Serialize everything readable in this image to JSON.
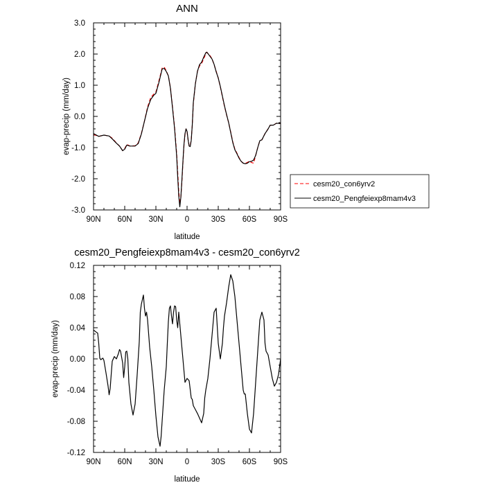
{
  "chart_data": [
    {
      "type": "line",
      "title": "ANN",
      "xlabel": "latitude",
      "ylabel": "evap-precip (mm/day)",
      "x_ticks": [
        "90N",
        "60N",
        "30N",
        "0",
        "30S",
        "60S",
        "90S"
      ],
      "x_tick_values": [
        90,
        60,
        30,
        0,
        -30,
        -60,
        -90
      ],
      "y_ticks": [
        "3.0",
        "2.0",
        "1.0",
        "0.0",
        "-1.0",
        "-2.0",
        "-3.0"
      ],
      "xlim": [
        90,
        -90
      ],
      "ylim": [
        -3,
        3
      ],
      "legend_position": "right",
      "series": [
        {
          "name": "cesm20_con6yrv2",
          "color": "#ff0000",
          "dash": "dashed",
          "x": [
            90,
            85,
            80,
            75,
            72,
            68,
            65,
            62,
            60,
            58,
            55,
            50,
            47,
            44,
            41,
            38,
            35,
            32,
            30,
            27,
            24,
            22,
            20,
            18,
            16,
            14,
            12,
            10,
            9,
            8,
            7,
            6,
            5,
            4,
            3,
            2,
            1,
            0,
            -1,
            -2,
            -3,
            -4,
            -5,
            -6,
            -8,
            -10,
            -12,
            -14,
            -16,
            -18,
            -19,
            -20,
            -22,
            -24,
            -26,
            -28,
            -30,
            -32,
            -34,
            -36,
            -38,
            -40,
            -42,
            -44,
            -46,
            -48,
            -50,
            -52,
            -54,
            -56,
            -58,
            -60,
            -62,
            -64,
            -66,
            -68,
            -70,
            -72,
            -75,
            -78,
            -80,
            -83,
            -86,
            -90
          ],
          "y": [
            -0.58,
            -0.64,
            -0.6,
            -0.63,
            -0.7,
            -0.85,
            -0.95,
            -1.1,
            -1.03,
            -0.9,
            -0.95,
            -0.94,
            -0.85,
            -0.55,
            -0.15,
            0.3,
            0.6,
            0.72,
            0.78,
            1.15,
            1.55,
            1.58,
            1.46,
            1.3,
            0.92,
            0.3,
            -0.35,
            -1.2,
            -1.8,
            -2.4,
            -2.8,
            -2.6,
            -2.1,
            -1.5,
            -0.95,
            -0.58,
            -0.4,
            -0.5,
            -0.75,
            -0.95,
            -0.95,
            -0.75,
            -0.3,
            0.4,
            1.05,
            1.45,
            1.62,
            1.7,
            1.85,
            2.01,
            2.06,
            2.02,
            1.95,
            1.85,
            1.66,
            1.45,
            1.23,
            0.95,
            0.63,
            0.32,
            0.05,
            -0.2,
            -0.5,
            -0.82,
            -1.05,
            -1.18,
            -1.32,
            -1.44,
            -1.5,
            -1.5,
            -1.48,
            -1.43,
            -1.48,
            -1.5,
            -1.25,
            -1.0,
            -0.78,
            -0.75,
            -0.55,
            -0.4,
            -0.28,
            -0.28,
            -0.22,
            -0.23
          ]
        },
        {
          "name": "cesm20_Pengfeiexp8mam4v3",
          "color": "#000000",
          "dash": "solid",
          "x": [
            90,
            85,
            80,
            75,
            72,
            68,
            65,
            62,
            60,
            58,
            55,
            50,
            47,
            44,
            41,
            38,
            35,
            32,
            30,
            27,
            24,
            22,
            20,
            18,
            16,
            14,
            12,
            10,
            9,
            8,
            7,
            6,
            5,
            4,
            3,
            2,
            1,
            0,
            -1,
            -2,
            -3,
            -4,
            -5,
            -6,
            -8,
            -10,
            -12,
            -14,
            -16,
            -18,
            -19,
            -20,
            -22,
            -24,
            -26,
            -28,
            -30,
            -32,
            -34,
            -36,
            -38,
            -40,
            -42,
            -44,
            -46,
            -48,
            -50,
            -52,
            -54,
            -56,
            -58,
            -60,
            -62,
            -64,
            -66,
            -68,
            -70,
            -72,
            -75,
            -78,
            -80,
            -83,
            -86,
            -90
          ],
          "y": [
            -0.55,
            -0.64,
            -0.6,
            -0.63,
            -0.72,
            -0.86,
            -0.95,
            -1.1,
            -1.05,
            -0.92,
            -0.95,
            -0.95,
            -0.87,
            -0.57,
            -0.15,
            0.26,
            0.54,
            0.68,
            0.74,
            1.1,
            1.52,
            1.54,
            1.44,
            1.3,
            0.9,
            0.27,
            -0.4,
            -1.28,
            -1.95,
            -2.55,
            -2.9,
            -2.6,
            -2.05,
            -1.45,
            -0.9,
            -0.55,
            -0.4,
            -0.48,
            -0.75,
            -0.95,
            -0.97,
            -0.77,
            -0.28,
            0.44,
            1.05,
            1.45,
            1.66,
            1.74,
            1.9,
            2.04,
            2.06,
            2.02,
            1.93,
            1.84,
            1.67,
            1.43,
            1.23,
            0.96,
            0.65,
            0.34,
            0.06,
            -0.2,
            -0.52,
            -0.84,
            -1.07,
            -1.2,
            -1.34,
            -1.44,
            -1.5,
            -1.52,
            -1.5,
            -1.45,
            -1.44,
            -1.4,
            -1.25,
            -1.0,
            -0.78,
            -0.75,
            -0.55,
            -0.4,
            -0.28,
            -0.28,
            -0.22,
            -0.23
          ]
        }
      ]
    },
    {
      "type": "line",
      "title": "cesm20_Pengfeiexp8mam4v3 - cesm20_con6yrv2",
      "xlabel": "latitude",
      "ylabel": "evap-precip (mm/day)",
      "x_ticks": [
        "90N",
        "60N",
        "30N",
        "0",
        "30S",
        "60S",
        "90S"
      ],
      "x_tick_values": [
        90,
        60,
        30,
        0,
        -30,
        -60,
        -90
      ],
      "y_ticks": [
        "0.12",
        "0.08",
        "0.04",
        "0.00",
        "-0.04",
        "-0.08",
        "-0.12"
      ],
      "xlim": [
        90,
        -90
      ],
      "ylim": [
        -0.12,
        0.12
      ],
      "series": [
        {
          "name": "",
          "color": "#000000",
          "dash": "solid",
          "x": [
            90,
            87,
            86,
            85,
            84,
            83,
            82,
            81,
            80,
            78,
            76,
            75,
            74,
            73,
            72,
            70,
            68,
            66,
            65,
            64,
            62,
            61,
            60,
            59,
            58,
            57,
            56,
            54,
            52,
            50,
            48,
            46,
            45,
            44,
            42,
            41,
            40,
            39,
            38,
            36,
            34,
            32,
            30,
            28,
            26,
            25,
            24,
            23,
            22,
            20,
            19,
            18,
            17,
            16,
            15,
            14,
            13,
            12,
            11,
            10,
            9,
            8,
            6,
            4,
            2,
            0,
            -2,
            -4,
            -5,
            -6,
            -8,
            -10,
            -12,
            -14,
            -16,
            -17,
            -18,
            -20,
            -22,
            -24,
            -26,
            -28,
            -30,
            -32,
            -34,
            -35,
            -36,
            -38,
            -40,
            -42,
            -44,
            -46,
            -48,
            -50,
            -52,
            -54,
            -55,
            -56,
            -58,
            -60,
            -62,
            -64,
            -66,
            -68,
            -70,
            -72,
            -74,
            -75,
            -76,
            -78,
            -80,
            -82,
            -84,
            -86,
            -88,
            -90
          ],
          "y": [
            0.037,
            0.034,
            0.033,
            0.02,
            0.001,
            -0.001,
            0.0,
            0.001,
            -0.002,
            -0.018,
            -0.035,
            -0.046,
            -0.038,
            -0.02,
            -0.003,
            0.003,
            0.0,
            0.007,
            0.012,
            0.01,
            -0.005,
            -0.024,
            -0.01,
            0.009,
            0.01,
            0.0,
            -0.03,
            -0.058,
            -0.072,
            -0.058,
            -0.02,
            0.022,
            0.06,
            0.07,
            0.082,
            0.065,
            0.055,
            0.06,
            0.05,
            0.015,
            -0.01,
            -0.04,
            -0.073,
            -0.1,
            -0.112,
            -0.1,
            -0.08,
            -0.06,
            -0.04,
            -0.01,
            0.02,
            0.048,
            0.065,
            0.068,
            0.055,
            0.045,
            0.06,
            0.068,
            0.067,
            0.05,
            0.04,
            0.06,
            0.03,
            0.0,
            -0.03,
            -0.025,
            -0.028,
            -0.05,
            -0.052,
            -0.06,
            -0.065,
            -0.07,
            -0.076,
            -0.082,
            -0.07,
            -0.05,
            -0.04,
            -0.025,
            0.0,
            0.03,
            0.06,
            0.065,
            0.02,
            0.0,
            0.02,
            0.04,
            0.055,
            0.072,
            0.092,
            0.108,
            0.1,
            0.08,
            0.05,
            0.02,
            -0.01,
            -0.04,
            -0.045,
            -0.045,
            -0.07,
            -0.09,
            -0.095,
            -0.07,
            -0.03,
            0.01,
            0.05,
            0.06,
            0.05,
            0.02,
            0.01,
            0.005,
            -0.01,
            -0.025,
            -0.035,
            -0.03,
            -0.02,
            0.0
          ]
        }
      ]
    }
  ]
}
